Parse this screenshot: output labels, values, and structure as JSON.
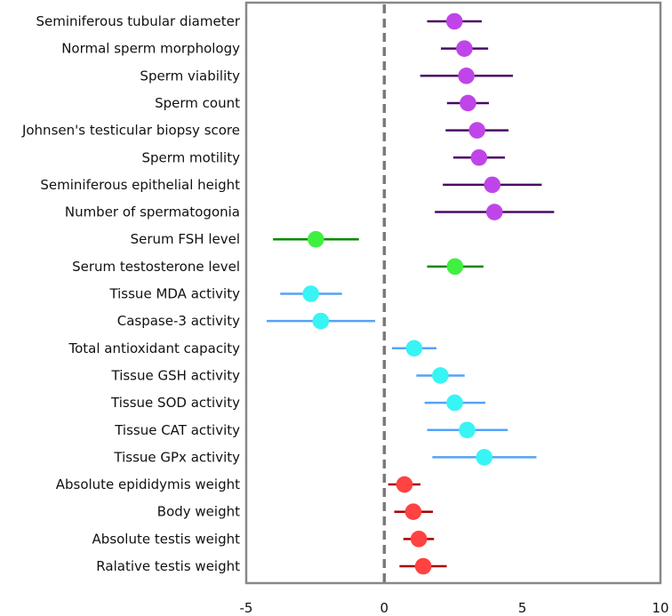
{
  "chart_data": {
    "type": "forest",
    "title": "",
    "xlabel": "",
    "ylabel": "",
    "xlim": [
      -5,
      10
    ],
    "xticks": [
      -5,
      0,
      5,
      10
    ],
    "reference_line": 0,
    "groups": {
      "sperm": {
        "dot": "#bf45e8",
        "line": "#4a0a63"
      },
      "hormone": {
        "dot": "#40f040",
        "line": "#008a00"
      },
      "oxidative": {
        "dot": "#38f4f4",
        "line": "#55a3f5"
      },
      "weight": {
        "dot": "#ff4242",
        "line": "#a80000"
      }
    },
    "rows": [
      {
        "label": "Seminiferous tubular diameter",
        "group": "sperm",
        "estimate": 2.54,
        "lower": 1.55,
        "upper": 3.53
      },
      {
        "label": "Normal sperm morphology",
        "group": "sperm",
        "estimate": 2.9,
        "lower": 2.05,
        "upper": 3.76
      },
      {
        "label": "Sperm viability",
        "group": "sperm",
        "estimate": 2.97,
        "lower": 1.3,
        "upper": 4.66
      },
      {
        "label": "Sperm count",
        "group": "sperm",
        "estimate": 3.03,
        "lower": 2.27,
        "upper": 3.79
      },
      {
        "label": "Johnsen's testicular biopsy score",
        "group": "sperm",
        "estimate": 3.36,
        "lower": 2.22,
        "upper": 4.5
      },
      {
        "label": "Sperm motility",
        "group": "sperm",
        "estimate": 3.43,
        "lower": 2.5,
        "upper": 4.37
      },
      {
        "label": "Seminiferous epithelial height",
        "group": "sperm",
        "estimate": 3.91,
        "lower": 2.12,
        "upper": 5.7
      },
      {
        "label": "Number of spermatogonia",
        "group": "sperm",
        "estimate": 3.99,
        "lower": 1.83,
        "upper": 6.15
      },
      {
        "label": "Serum FSH level",
        "group": "hormone",
        "estimate": -2.48,
        "lower": -4.03,
        "upper": -0.92
      },
      {
        "label": "Serum testosterone level",
        "group": "hormone",
        "estimate": 2.56,
        "lower": 1.55,
        "upper": 3.59
      },
      {
        "label": "Tissue MDA activity",
        "group": "oxidative",
        "estimate": -2.66,
        "lower": -3.77,
        "upper": -1.53
      },
      {
        "label": "Caspase-3 activity",
        "group": "oxidative",
        "estimate": -2.3,
        "lower": -4.26,
        "upper": -0.33
      },
      {
        "label": "Total antioxidant capacity",
        "group": "oxidative",
        "estimate": 1.08,
        "lower": 0.28,
        "upper": 1.89
      },
      {
        "label": "Tissue GSH activity",
        "group": "oxidative",
        "estimate": 2.03,
        "lower": 1.16,
        "upper": 2.91
      },
      {
        "label": "Tissue SOD activity",
        "group": "oxidative",
        "estimate": 2.55,
        "lower": 1.46,
        "upper": 3.66
      },
      {
        "label": "Tissue CAT activity",
        "group": "oxidative",
        "estimate": 3.0,
        "lower": 1.55,
        "upper": 4.47
      },
      {
        "label": "Tissue GPx activity",
        "group": "oxidative",
        "estimate": 3.62,
        "lower": 1.74,
        "upper": 5.51
      },
      {
        "label": "Absolute epididymis weight",
        "group": "weight",
        "estimate": 0.73,
        "lower": 0.14,
        "upper": 1.31
      },
      {
        "label": "Body weight",
        "group": "weight",
        "estimate": 1.05,
        "lower": 0.36,
        "upper": 1.76
      },
      {
        "label": "Absolute testis weight",
        "group": "weight",
        "estimate": 1.25,
        "lower": 0.69,
        "upper": 1.8
      },
      {
        "label": "Ralative testis weight",
        "group": "weight",
        "estimate": 1.41,
        "lower": 0.55,
        "upper": 2.26
      }
    ]
  }
}
